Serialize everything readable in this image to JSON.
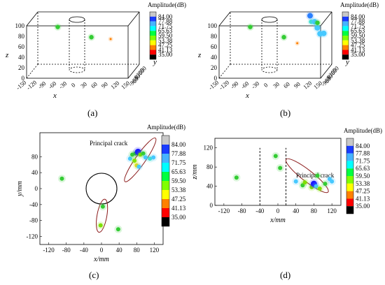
{
  "colorbar": {
    "title": "Amplitude(dB)",
    "ticks": [
      "84.00",
      "77.88",
      "71.75",
      "65.63",
      "59.50",
      "53.38",
      "47.25",
      "41.13",
      "35.00"
    ],
    "colors": [
      "#c8c8c8",
      "#1a3cff",
      "#46b4ff",
      "#00ffff",
      "#00ff40",
      "#80ff00",
      "#ffff00",
      "#ff8000",
      "#ff0000",
      "#000000"
    ],
    "bottom_colors": [
      "#ff0000",
      "#000000"
    ]
  },
  "labels": {
    "a": "(a)",
    "b": "(b)",
    "c": "(c)",
    "d": "(d)"
  },
  "chart_data": [
    {
      "panel": "a",
      "type": "scatter",
      "view": "3d",
      "zlabel": "z",
      "xlabel": "x",
      "ylabel": "y",
      "x_ticks": [
        "-150",
        "-120",
        "-90",
        "-60",
        "-30",
        "0",
        "30",
        "60",
        "90",
        "120",
        "150"
      ],
      "y_ticks": [
        "-90",
        "-60",
        "-30",
        "0",
        "30",
        "60",
        "90"
      ],
      "z_ticks": [
        "0",
        "20",
        "40",
        "60",
        "80",
        "100"
      ],
      "points": [
        {
          "x": -80,
          "y": 30,
          "z": 80,
          "amp": 60
        },
        {
          "x": 25,
          "y": 0,
          "z": 65,
          "amp": 60
        },
        {
          "x": 80,
          "y": 10,
          "z": 60,
          "amp": 42
        }
      ]
    },
    {
      "panel": "b",
      "type": "scatter",
      "view": "3d",
      "zlabel": "z",
      "xlabel": "x",
      "ylabel": "y",
      "x_ticks": [
        "-150",
        "-120",
        "-90",
        "-60",
        "-30",
        "0",
        "30",
        "60",
        "90",
        "120",
        "150"
      ],
      "y_ticks": [
        "-90",
        "-60",
        "-30",
        "0",
        "30",
        "60",
        "90"
      ],
      "z_ticks": [
        "0",
        "20",
        "40",
        "60",
        "80",
        "100"
      ],
      "points": [
        {
          "x": -80,
          "y": 30,
          "z": 80,
          "amp": 60
        },
        {
          "x": 25,
          "y": 0,
          "z": 65,
          "amp": 60
        },
        {
          "x": 70,
          "y": -30,
          "z": 58,
          "amp": 42
        },
        {
          "x": 95,
          "y": 40,
          "z": 100,
          "amp": 77
        },
        {
          "x": 100,
          "y": 30,
          "z": 90,
          "amp": 65
        },
        {
          "x": 110,
          "y": 30,
          "z": 90,
          "amp": 70
        },
        {
          "x": 120,
          "y": 20,
          "z": 80,
          "amp": 72
        },
        {
          "x": 130,
          "y": 10,
          "z": 70,
          "amp": 70
        },
        {
          "x": 140,
          "y": 15,
          "z": 70,
          "amp": 68
        },
        {
          "x": 115,
          "y": 50,
          "z": 85,
          "amp": 58
        }
      ]
    },
    {
      "panel": "c",
      "type": "scatter",
      "xlabel": "x/mm",
      "ylabel": "y/mm",
      "xlim": [
        -140,
        140
      ],
      "ylim": [
        -140,
        140
      ],
      "x_ticks": [
        "-120",
        "-80",
        "-40",
        "0",
        "40",
        "80",
        "120"
      ],
      "y_ticks": [
        "-120",
        "-80",
        "-40",
        "0",
        "40",
        "80"
      ],
      "annotation": "Principal crack",
      "points": [
        {
          "x": -90,
          "y": 25,
          "amp": 58
        },
        {
          "x": 65,
          "y": 75,
          "amp": 70
        },
        {
          "x": 70,
          "y": 85,
          "amp": 60
        },
        {
          "x": 77,
          "y": 88,
          "amp": 58
        },
        {
          "x": 83,
          "y": 92,
          "amp": 84
        },
        {
          "x": 88,
          "y": 85,
          "amp": 50
        },
        {
          "x": 95,
          "y": 88,
          "amp": 56
        },
        {
          "x": 100,
          "y": 78,
          "amp": 72
        },
        {
          "x": 110,
          "y": 75,
          "amp": 66
        },
        {
          "x": 118,
          "y": 78,
          "amp": 68
        },
        {
          "x": 75,
          "y": 70,
          "amp": 55
        },
        {
          "x": 80,
          "y": 58,
          "amp": 46
        },
        {
          "x": 85,
          "y": 55,
          "amp": 70
        },
        {
          "x": 3,
          "y": -45,
          "amp": 62
        },
        {
          "x": -2,
          "y": -92,
          "amp": 52
        },
        {
          "x": 38,
          "y": -102,
          "amp": 60
        }
      ]
    },
    {
      "panel": "d",
      "type": "scatter",
      "xlabel": "x/mm",
      "ylabel": "z/mm",
      "xlim": [
        -140,
        140
      ],
      "ylim": [
        0,
        140
      ],
      "x_ticks": [
        "-120",
        "-80",
        "-40",
        "0",
        "40",
        "80",
        "120"
      ],
      "y_ticks": [
        "0",
        "40",
        "80",
        "120"
      ],
      "annotation": "Principal crack",
      "points": [
        {
          "x": -92,
          "y": 58,
          "amp": 62
        },
        {
          "x": -5,
          "y": 103,
          "amp": 60
        },
        {
          "x": 5,
          "y": 78,
          "amp": 60
        },
        {
          "x": 40,
          "y": 50,
          "amp": 68
        },
        {
          "x": 55,
          "y": 42,
          "amp": 62
        },
        {
          "x": 60,
          "y": 48,
          "amp": 52
        },
        {
          "x": 75,
          "y": 38,
          "amp": 55
        },
        {
          "x": 80,
          "y": 45,
          "amp": 84
        },
        {
          "x": 85,
          "y": 40,
          "amp": 70
        },
        {
          "x": 88,
          "y": 62,
          "amp": 60
        },
        {
          "x": 93,
          "y": 35,
          "amp": 55
        },
        {
          "x": 105,
          "y": 45,
          "amp": 58
        },
        {
          "x": 115,
          "y": 55,
          "amp": 72
        },
        {
          "x": 120,
          "y": 50,
          "amp": 70
        }
      ]
    }
  ]
}
